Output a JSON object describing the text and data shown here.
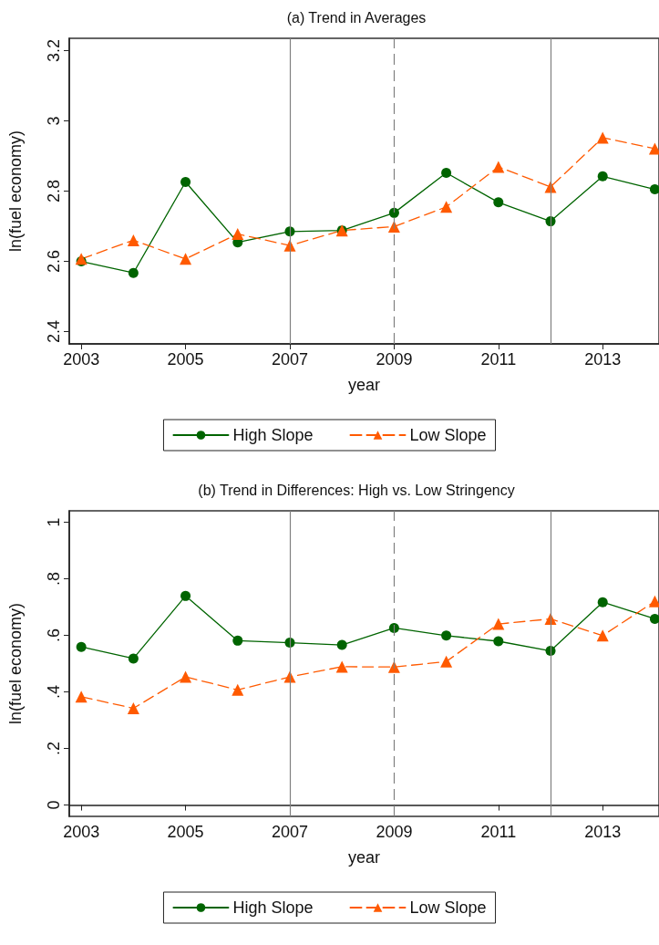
{
  "chart_data": [
    {
      "type": "line",
      "title": "(a) Trend in Averages",
      "xlabel": "year",
      "ylabel": "ln(fuel economy)",
      "x": [
        2003,
        2004,
        2005,
        2006,
        2007,
        2008,
        2009,
        2010,
        2011,
        2012,
        2013,
        2014
      ],
      "series": [
        {
          "name": "High Slope",
          "color": "#006400",
          "marker": "circle",
          "line_style": "solid",
          "values": [
            2.6,
            2.567,
            2.826,
            2.654,
            2.685,
            2.688,
            2.738,
            2.852,
            2.768,
            2.714,
            2.842,
            2.805
          ]
        },
        {
          "name": "Low Slope",
          "color": "#ff5a00",
          "marker": "triangle",
          "line_style": "dashed",
          "values": [
            2.607,
            2.66,
            2.607,
            2.678,
            2.645,
            2.688,
            2.699,
            2.755,
            2.869,
            2.812,
            2.952,
            2.921
          ]
        }
      ],
      "xlim": [
        2002.77,
        2014.08
      ],
      "xticks": [
        2003,
        2005,
        2007,
        2009,
        2011,
        2013
      ],
      "ylim": [
        2.365,
        3.235
      ],
      "yticks": [
        2.4,
        2.6,
        2.8,
        3,
        3.2
      ],
      "ref_lines": [
        {
          "axis": "x",
          "value": 2007,
          "color": "#808080",
          "line_style": "solid"
        },
        {
          "axis": "x",
          "value": 2009,
          "color": "#808080",
          "line_style": "dashed"
        },
        {
          "axis": "x",
          "value": 2012,
          "color": "#808080",
          "line_style": "solid"
        }
      ],
      "grid": false,
      "legend": "bottom"
    },
    {
      "type": "line",
      "title": "(b) Trend in Differences: High vs. Low Stringency",
      "xlabel": "year",
      "ylabel": "ln(fuel economy)",
      "x": [
        2003,
        2004,
        2005,
        2006,
        2007,
        2008,
        2009,
        2010,
        2011,
        2012,
        2013,
        2014
      ],
      "series": [
        {
          "name": "High Slope",
          "color": "#006400",
          "marker": "circle",
          "line_style": "solid",
          "values": [
            0.559,
            0.518,
            0.739,
            0.581,
            0.574,
            0.566,
            0.626,
            0.599,
            0.579,
            0.545,
            0.717,
            0.658
          ]
        },
        {
          "name": "Low Slope",
          "color": "#ff5a00",
          "marker": "triangle",
          "line_style": "dashed",
          "values": [
            0.383,
            0.342,
            0.453,
            0.407,
            0.453,
            0.489,
            0.488,
            0.507,
            0.64,
            0.658,
            0.599,
            0.72
          ]
        }
      ],
      "xlim": [
        2002.77,
        2014.08
      ],
      "xticks": [
        2003,
        2005,
        2007,
        2009,
        2011,
        2013
      ],
      "ylim": [
        -0.04,
        1.04
      ],
      "yticks": [
        0,
        {
          "value": 0.2,
          "label": ".2"
        },
        {
          "value": 0.4,
          "label": ".4"
        },
        {
          "value": 0.6,
          "label": ".6"
        },
        {
          "value": 0.8,
          "label": ".8"
        },
        1
      ],
      "ref_lines": [
        {
          "axis": "x",
          "value": 2007,
          "color": "#808080",
          "line_style": "solid"
        },
        {
          "axis": "x",
          "value": 2009,
          "color": "#808080",
          "line_style": "dashed"
        },
        {
          "axis": "x",
          "value": 2012,
          "color": "#808080",
          "line_style": "solid"
        }
      ],
      "grid": false,
      "legend": "bottom"
    }
  ]
}
